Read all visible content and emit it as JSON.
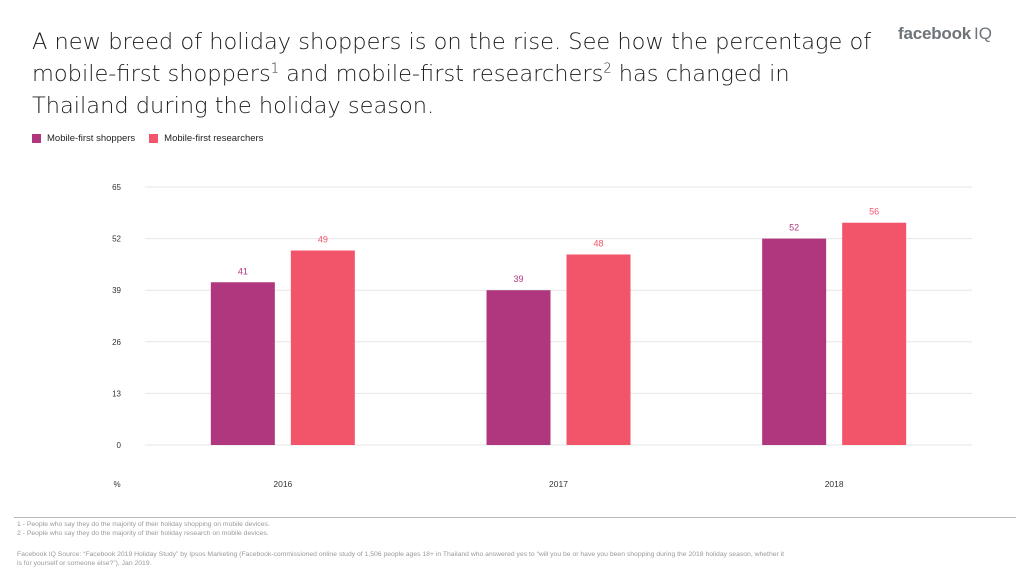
{
  "headline": {
    "part1": "A new breed of holiday shoppers is on the rise. See how the percentage of mobile-first shoppers",
    "sup1": "1",
    "part2": " and mobile-first researchers",
    "sup2": "2",
    "part3": " has changed in Thailand during the holiday season."
  },
  "brand": {
    "name": "facebook",
    "suffix": "IQ"
  },
  "colors": {
    "shoppers": "#b0367d",
    "researchers": "#f2546a",
    "gridline": "#e6e6e6"
  },
  "chart_data": {
    "type": "bar",
    "categories": [
      "2016",
      "2017",
      "2018"
    ],
    "series": [
      {
        "name": "Mobile-first shoppers",
        "values": [
          41,
          39,
          52
        ]
      },
      {
        "name": "Mobile-first researchers",
        "values": [
          49,
          48,
          56
        ]
      }
    ],
    "ylim": [
      0,
      65
    ],
    "yticks": [
      0,
      13,
      26,
      39,
      52,
      65
    ],
    "unit_label": "%",
    "grid": true,
    "legend": "top-left"
  },
  "footnotes": [
    "1 - People who say they do the majority of their holiday shopping on mobile devices.",
    "2 - People who say they do the majority of their holiday research on mobile devices."
  ],
  "source": "Facebook IQ Source: “Facebook 2019 Holiday Study” by Ipsos Marketing (Facebook-commissioned online study of 1,506 people ages 18+ in Thailand who answered yes to “will you be or have you been shopping during the 2018 holiday season, whether it is for yourself or someone else?”), Jan 2019."
}
